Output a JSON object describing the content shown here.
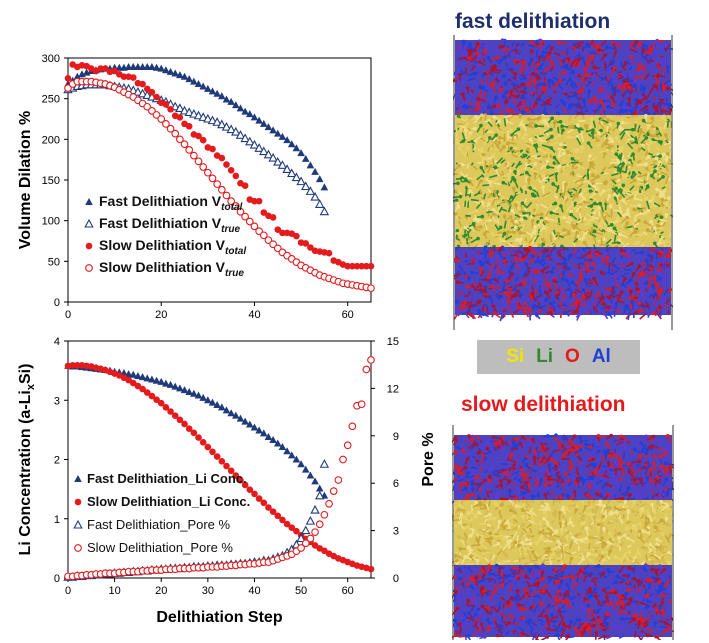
{
  "chart_data": [
    {
      "type": "scatter",
      "ylabel": "Volume Dilation %",
      "xlim": [
        0,
        65
      ],
      "ylim": [
        0,
        300
      ],
      "xticks": [
        0,
        20,
        40,
        60
      ],
      "yticks": [
        0,
        50,
        100,
        150,
        200,
        250,
        300
      ],
      "legend_position": "bottom-left",
      "series": [
        {
          "name": "Fast Delithiation V",
          "sub": "total",
          "marker": "filled-triangle",
          "color": "#1f3a7a",
          "x": [
            0,
            1,
            2,
            3,
            4,
            5,
            6,
            7,
            8,
            9,
            10,
            11,
            12,
            13,
            14,
            15,
            16,
            17,
            18,
            19,
            20,
            21,
            22,
            23,
            24,
            25,
            26,
            27,
            28,
            29,
            30,
            31,
            32,
            33,
            34,
            35,
            36,
            37,
            38,
            39,
            40,
            41,
            42,
            43,
            44,
            45,
            46,
            47,
            48,
            49,
            50,
            51,
            52,
            53,
            54,
            55
          ],
          "y": [
            268,
            272,
            277,
            280,
            282,
            284,
            285,
            286,
            287,
            287,
            288,
            288,
            288,
            289,
            289,
            289,
            289,
            289,
            289,
            288,
            287,
            285,
            283,
            281,
            279,
            277,
            274,
            271,
            268,
            265,
            262,
            259,
            256,
            253,
            249,
            246,
            242,
            238,
            234,
            231,
            227,
            223,
            219,
            215,
            211,
            207,
            203,
            199,
            194,
            189,
            183,
            176,
            168,
            160,
            151,
            141
          ]
        },
        {
          "name": "Fast Delithiation V",
          "sub": "true",
          "marker": "open-triangle",
          "color": "#1f3a7a",
          "x": [
            0,
            1,
            2,
            3,
            4,
            5,
            6,
            7,
            8,
            9,
            10,
            11,
            12,
            13,
            14,
            15,
            16,
            17,
            18,
            19,
            20,
            21,
            22,
            23,
            24,
            25,
            26,
            27,
            28,
            29,
            30,
            31,
            32,
            33,
            34,
            35,
            36,
            37,
            38,
            39,
            40,
            41,
            42,
            43,
            44,
            45,
            46,
            47,
            48,
            49,
            50,
            51,
            52,
            53,
            54,
            55
          ],
          "y": [
            261,
            263,
            265,
            266,
            267,
            267,
            267,
            267,
            267,
            266,
            265,
            264,
            263,
            262,
            260,
            258,
            256,
            254,
            252,
            250,
            248,
            246,
            243,
            240,
            238,
            235,
            233,
            231,
            229,
            227,
            225,
            223,
            221,
            218,
            215,
            212,
            209,
            205,
            201,
            197,
            193,
            189,
            185,
            181,
            177,
            172,
            168,
            163,
            158,
            153,
            148,
            142,
            136,
            129,
            120,
            111
          ]
        },
        {
          "name": "Slow Delithiation V",
          "sub": "total",
          "marker": "filled-circle",
          "color": "#e41a1c",
          "x": [
            0,
            1,
            2,
            3,
            4,
            5,
            6,
            7,
            8,
            9,
            10,
            11,
            12,
            13,
            14,
            15,
            16,
            17,
            18,
            19,
            20,
            21,
            22,
            23,
            24,
            25,
            26,
            27,
            28,
            29,
            30,
            31,
            32,
            33,
            34,
            35,
            36,
            37,
            38,
            39,
            40,
            41,
            42,
            43,
            44,
            45,
            46,
            47,
            48,
            49,
            50,
            51,
            52,
            53,
            54,
            55,
            56,
            57,
            58,
            59,
            60,
            61,
            62,
            63,
            64,
            65
          ],
          "y": [
            275,
            292,
            289,
            291,
            290,
            287,
            284,
            287,
            287,
            283,
            284,
            280,
            277,
            277,
            276,
            269,
            268,
            262,
            258,
            252,
            245,
            243,
            237,
            229,
            227,
            219,
            216,
            206,
            204,
            199,
            190,
            188,
            180,
            177,
            169,
            162,
            155,
            146,
            143,
            126,
            124,
            124,
            110,
            106,
            104,
            89,
            85,
            85,
            84,
            81,
            73,
            72,
            67,
            63,
            62,
            61,
            60,
            51,
            49,
            46,
            44,
            44,
            44,
            44,
            44,
            44
          ]
        },
        {
          "name": "Slow Delithiation V",
          "sub": "true",
          "marker": "open-circle",
          "color": "#e41a1c",
          "x": [
            0,
            1,
            2,
            3,
            4,
            5,
            6,
            7,
            8,
            9,
            10,
            11,
            12,
            13,
            14,
            15,
            16,
            17,
            18,
            19,
            20,
            21,
            22,
            23,
            24,
            25,
            26,
            27,
            28,
            29,
            30,
            31,
            32,
            33,
            34,
            35,
            36,
            37,
            38,
            39,
            40,
            41,
            42,
            43,
            44,
            45,
            46,
            47,
            48,
            49,
            50,
            51,
            52,
            53,
            54,
            55,
            56,
            57,
            58,
            59,
            60,
            61,
            62,
            63,
            64,
            65
          ],
          "y": [
            263,
            268,
            271,
            271,
            271,
            271,
            270,
            269,
            268,
            266,
            264,
            261,
            258,
            255,
            252,
            248,
            244,
            240,
            235,
            230,
            225,
            219,
            213,
            207,
            200,
            194,
            187,
            180,
            173,
            166,
            159,
            152,
            145,
            138,
            131,
            124,
            118,
            111,
            105,
            99,
            93,
            87,
            82,
            76,
            71,
            66,
            61,
            57,
            53,
            49,
            45,
            42,
            39,
            36,
            33,
            31,
            29,
            27,
            25,
            23,
            22,
            21,
            20,
            19,
            18,
            17
          ]
        }
      ]
    },
    {
      "type": "scatter",
      "xlabel": "Delithiation Step",
      "ylabel": "Li Concentration (a-Li",
      "ylabel_sub": "x",
      "ylabel_tail": "Si)",
      "y2label": "Pore %",
      "xlim": [
        0,
        65
      ],
      "ylim": [
        0,
        4
      ],
      "y2lim": [
        0,
        15
      ],
      "xticks": [
        0,
        10,
        20,
        30,
        40,
        50,
        60
      ],
      "yticks": [
        0,
        1,
        2,
        3,
        4
      ],
      "y2ticks": [
        0,
        3,
        6,
        9,
        12,
        15
      ],
      "legend_position": "bottom-left",
      "series": [
        {
          "name": "Fast Delithiation_Li Conc.",
          "axis": "left",
          "marker": "filled-triangle",
          "color": "#1f3a7a",
          "x": [
            0,
            1,
            2,
            3,
            4,
            5,
            6,
            7,
            8,
            9,
            10,
            11,
            12,
            13,
            14,
            15,
            16,
            17,
            18,
            19,
            20,
            21,
            22,
            23,
            24,
            25,
            26,
            27,
            28,
            29,
            30,
            31,
            32,
            33,
            34,
            35,
            36,
            37,
            38,
            39,
            40,
            41,
            42,
            43,
            44,
            45,
            46,
            47,
            48,
            49,
            50,
            51,
            52,
            53,
            54,
            55
          ],
          "y": [
            3.58,
            3.57,
            3.57,
            3.56,
            3.55,
            3.54,
            3.53,
            3.52,
            3.51,
            3.5,
            3.48,
            3.47,
            3.46,
            3.44,
            3.43,
            3.41,
            3.39,
            3.37,
            3.35,
            3.33,
            3.31,
            3.28,
            3.26,
            3.23,
            3.2,
            3.17,
            3.14,
            3.11,
            3.08,
            3.04,
            3.0,
            2.96,
            2.92,
            2.88,
            2.83,
            2.78,
            2.74,
            2.69,
            2.64,
            2.59,
            2.54,
            2.49,
            2.44,
            2.38,
            2.33,
            2.27,
            2.21,
            2.14,
            2.07,
            2.0,
            1.92,
            1.83,
            1.73,
            1.63,
            1.51,
            1.39
          ]
        },
        {
          "name": "Slow Delithiation_Li Conc.",
          "axis": "left",
          "marker": "filled-circle",
          "color": "#e41a1c",
          "x": [
            0,
            1,
            2,
            3,
            4,
            5,
            6,
            7,
            8,
            9,
            10,
            11,
            12,
            13,
            14,
            15,
            16,
            17,
            18,
            19,
            20,
            21,
            22,
            23,
            24,
            25,
            26,
            27,
            28,
            29,
            30,
            31,
            32,
            33,
            34,
            35,
            36,
            37,
            38,
            39,
            40,
            41,
            42,
            43,
            44,
            45,
            46,
            47,
            48,
            49,
            50,
            51,
            52,
            53,
            54,
            55,
            56,
            57,
            58,
            59,
            60,
            61,
            62,
            63,
            64,
            65
          ],
          "y": [
            3.58,
            3.59,
            3.59,
            3.59,
            3.58,
            3.57,
            3.55,
            3.53,
            3.51,
            3.48,
            3.45,
            3.42,
            3.38,
            3.34,
            3.29,
            3.24,
            3.19,
            3.13,
            3.07,
            3.01,
            2.95,
            2.88,
            2.81,
            2.74,
            2.67,
            2.6,
            2.52,
            2.45,
            2.37,
            2.29,
            2.21,
            2.13,
            2.05,
            1.97,
            1.89,
            1.81,
            1.73,
            1.65,
            1.57,
            1.49,
            1.42,
            1.34,
            1.27,
            1.19,
            1.12,
            1.05,
            0.98,
            0.91,
            0.85,
            0.79,
            0.72,
            0.66,
            0.61,
            0.55,
            0.5,
            0.46,
            0.41,
            0.37,
            0.33,
            0.3,
            0.27,
            0.24,
            0.21,
            0.19,
            0.17,
            0.15
          ]
        },
        {
          "name": "Fast Delithiation_Pore %",
          "axis": "right",
          "marker": "open-triangle",
          "color": "#1f3a7a",
          "x": [
            0,
            1,
            2,
            3,
            4,
            5,
            6,
            7,
            8,
            9,
            10,
            11,
            12,
            13,
            14,
            15,
            16,
            17,
            18,
            19,
            20,
            21,
            22,
            23,
            24,
            25,
            26,
            27,
            28,
            29,
            30,
            31,
            32,
            33,
            34,
            35,
            36,
            37,
            38,
            39,
            40,
            41,
            42,
            43,
            44,
            45,
            46,
            47,
            48,
            49,
            50,
            51,
            52,
            53,
            54,
            55
          ],
          "y": [
            0.05,
            0.05,
            0.1,
            0.1,
            0.15,
            0.15,
            0.2,
            0.2,
            0.25,
            0.25,
            0.3,
            0.3,
            0.35,
            0.35,
            0.4,
            0.4,
            0.45,
            0.45,
            0.5,
            0.5,
            0.55,
            0.55,
            0.6,
            0.6,
            0.6,
            0.65,
            0.65,
            0.7,
            0.7,
            0.7,
            0.75,
            0.75,
            0.8,
            0.8,
            0.8,
            0.85,
            0.85,
            0.9,
            0.9,
            0.95,
            1.0,
            1.0,
            1.1,
            1.1,
            1.2,
            1.3,
            1.4,
            1.6,
            1.8,
            2.1,
            2.5,
            3.0,
            3.6,
            4.3,
            5.2,
            7.2
          ]
        },
        {
          "name": "Slow Delithiation_Pore %",
          "axis": "right",
          "marker": "open-circle",
          "color": "#e41a1c",
          "x": [
            0,
            1,
            2,
            3,
            4,
            5,
            6,
            7,
            8,
            9,
            10,
            11,
            12,
            13,
            14,
            15,
            16,
            17,
            18,
            19,
            20,
            21,
            22,
            23,
            24,
            25,
            26,
            27,
            28,
            29,
            30,
            31,
            32,
            33,
            34,
            35,
            36,
            37,
            38,
            39,
            40,
            41,
            42,
            43,
            44,
            45,
            46,
            47,
            48,
            49,
            50,
            51,
            52,
            53,
            54,
            55,
            56,
            57,
            58,
            59,
            60,
            61,
            62,
            63,
            64,
            65
          ],
          "y": [
            0.1,
            0.1,
            0.15,
            0.15,
            0.2,
            0.2,
            0.25,
            0.25,
            0.3,
            0.3,
            0.3,
            0.35,
            0.35,
            0.4,
            0.4,
            0.4,
            0.45,
            0.45,
            0.5,
            0.5,
            0.5,
            0.55,
            0.55,
            0.55,
            0.6,
            0.6,
            0.6,
            0.65,
            0.65,
            0.65,
            0.7,
            0.7,
            0.7,
            0.75,
            0.75,
            0.8,
            0.8,
            0.85,
            0.85,
            0.9,
            0.9,
            0.95,
            1.0,
            1.0,
            1.1,
            1.2,
            1.3,
            1.4,
            1.5,
            1.7,
            1.9,
            2.2,
            2.5,
            2.9,
            3.4,
            4.0,
            4.7,
            5.5,
            6.2,
            7.5,
            8.4,
            9.6,
            10.9,
            11.0,
            13.2,
            13.8
          ]
        }
      ]
    }
  ],
  "annotations": {
    "fast_title": "fast delithiation",
    "slow_title": "slow delithiation",
    "elements": [
      {
        "symbol": "Si",
        "color": "#f2e600"
      },
      {
        "symbol": "Li",
        "color": "#2e8b2e"
      },
      {
        "symbol": "O",
        "color": "#e41a1c"
      },
      {
        "symbol": "Al",
        "color": "#1f3fd6"
      }
    ]
  },
  "colors": {
    "title_fast": "#1f2f6e",
    "title_slow": "#e41a1c",
    "layer_al_o": "#3a2db8",
    "layer_si": "#d9c24a",
    "layer_li": "#2e8b2e"
  }
}
